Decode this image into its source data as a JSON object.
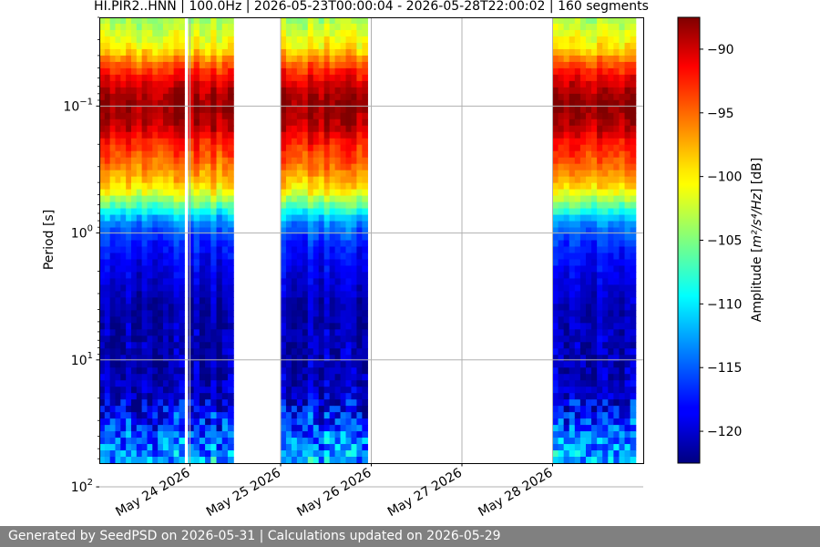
{
  "chart_data": {
    "type": "heatmap",
    "title": "HI.PIR2..HNN | 100.0Hz | 2026-05-23T00:00:04 - 2026-05-28T22:00:02 | 160 segments",
    "ylabel": "Period [s]",
    "colorbar_label_pre": "Amplitude [",
    "colorbar_label_math": "m²/s⁴/Hz",
    "colorbar_label_post": "] [dB]",
    "y_scale": "log",
    "y_inverted": true,
    "ylim": [
      0.02,
      65
    ],
    "y_ticks": [
      {
        "value": 0.1,
        "base": "10",
        "exp": "−1"
      },
      {
        "value": 1,
        "base": "10",
        "exp": "0"
      },
      {
        "value": 10,
        "base": "10",
        "exp": "1"
      },
      {
        "value": 100,
        "base": "10",
        "exp": "2"
      }
    ],
    "xlim": [
      "2026-05-23T00:00:00",
      "2026-05-29T00:00:00"
    ],
    "x_ticks": [
      {
        "date": "2026-05-24",
        "label": "May 24 2026"
      },
      {
        "date": "2026-05-25",
        "label": "May 25 2026"
      },
      {
        "date": "2026-05-26",
        "label": "May 26 2026"
      },
      {
        "date": "2026-05-27",
        "label": "May 27 2026"
      },
      {
        "date": "2026-05-28",
        "label": "May 28 2026"
      }
    ],
    "data_segments": [
      {
        "start": "2026-05-23T00:00:00",
        "end": "2026-05-23T22:30:00"
      },
      {
        "start": "2026-05-23T23:30:00",
        "end": "2026-05-24T11:30:00"
      },
      {
        "start": "2026-05-25T00:00:00",
        "end": "2026-05-25T23:00:00"
      },
      {
        "start": "2026-05-28T00:00:00",
        "end": "2026-05-28T22:00:00"
      }
    ],
    "amplitude_profile": [
      {
        "period": 0.02,
        "db": -104
      },
      {
        "period": 0.035,
        "db": -100
      },
      {
        "period": 0.05,
        "db": -94
      },
      {
        "period": 0.07,
        "db": -90
      },
      {
        "period": 0.1,
        "db": -88
      },
      {
        "period": 0.15,
        "db": -90
      },
      {
        "period": 0.2,
        "db": -93
      },
      {
        "period": 0.3,
        "db": -96
      },
      {
        "period": 0.45,
        "db": -100
      },
      {
        "period": 0.6,
        "db": -106
      },
      {
        "period": 0.8,
        "db": -113
      },
      {
        "period": 1.2,
        "db": -117
      },
      {
        "period": 2,
        "db": -119
      },
      {
        "period": 4,
        "db": -121
      },
      {
        "period": 10,
        "db": -121
      },
      {
        "period": 20,
        "db": -120
      },
      {
        "period": 30,
        "db": -117
      },
      {
        "period": 45,
        "db": -114
      },
      {
        "period": 65,
        "db": -112
      }
    ],
    "colorbar": {
      "vmin": -122.5,
      "vmax": -87.5,
      "ticks": [
        -90,
        -95,
        -100,
        -105,
        -110,
        -115,
        -120
      ],
      "tick_labels": [
        "−90",
        "−95",
        "−100",
        "−105",
        "−110",
        "−115",
        "−120"
      ],
      "colormap": "jet"
    },
    "grid": true
  },
  "footer": {
    "text": "Generated by SeedPSD on 2026-05-31 | Calculations updated on 2026-05-29"
  }
}
